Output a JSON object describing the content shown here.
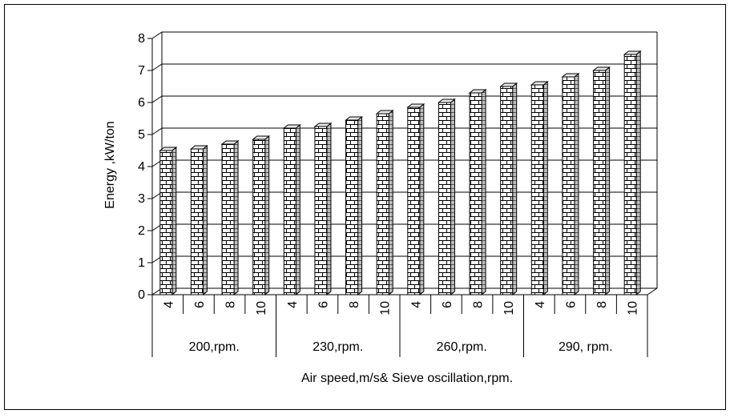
{
  "chart_data": {
    "type": "bar",
    "title": "",
    "ylabel": "Energy ,kW/ton",
    "xlabel": "Air speed,m/s& Sieve oscillation,rpm.",
    "ylim": [
      0,
      8
    ],
    "yticks": [
      0,
      1,
      2,
      3,
      4,
      5,
      6,
      7,
      8
    ],
    "grid": true,
    "legend": "none",
    "bar_style": "3d-brick-pattern",
    "groups": [
      {
        "label": "200,rpm.",
        "categories": [
          "4",
          "6",
          "8",
          "10"
        ],
        "values": [
          4.5,
          4.55,
          4.7,
          4.85
        ]
      },
      {
        "label": "230,rpm.",
        "categories": [
          "4",
          "6",
          "8",
          "10"
        ],
        "values": [
          5.2,
          5.25,
          5.45,
          5.65
        ]
      },
      {
        "label": "260,rpm.",
        "categories": [
          "4",
          "6",
          "8",
          "10"
        ],
        "values": [
          5.85,
          6.0,
          6.3,
          6.5
        ]
      },
      {
        "label": "290, rpm.",
        "categories": [
          "4",
          "6",
          "8",
          "10"
        ],
        "values": [
          6.55,
          6.8,
          7.0,
          7.5
        ]
      }
    ],
    "colors": {
      "bar_face": "#ffffff",
      "brick_line": "#000000",
      "bar_side": "#bbbbbb",
      "bar_top": "#e6e6e6"
    }
  }
}
